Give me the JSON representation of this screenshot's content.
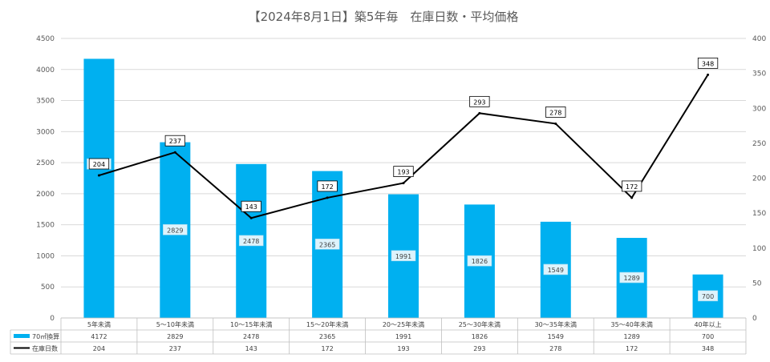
{
  "chart_data": {
    "type": "bar+line",
    "title": "【2024年8月1日】築5年毎　在庫日数・平均価格",
    "categories": [
      "5年未満",
      "5～10年未満",
      "10～15年未満",
      "15～20年未満",
      "20～25年未満",
      "25～30年未満",
      "30～35年未満",
      "35～40年未満",
      "40年以上"
    ],
    "series": [
      {
        "name": "70㎡換算",
        "type": "bar",
        "axis": "left",
        "color": "#00B0F0",
        "values": [
          4172,
          2829,
          2478,
          2365,
          1991,
          1826,
          1549,
          1289,
          700
        ],
        "labels": [
          "4172",
          "2829",
          "2478",
          "2365",
          "1991",
          "1826",
          "1549",
          "1289",
          "700"
        ]
      },
      {
        "name": "在庫日数",
        "type": "line",
        "axis": "right",
        "color": "#000000",
        "values": [
          204,
          237,
          143,
          172,
          193,
          293,
          278,
          172,
          348
        ],
        "labels": [
          "204",
          "237",
          "143",
          "172",
          "193",
          "293",
          "278",
          "172",
          "348"
        ]
      }
    ],
    "y_left": {
      "min": 0,
      "max": 4500,
      "ticks": [
        "0",
        "500",
        "1000",
        "1500",
        "2000",
        "2500",
        "3000",
        "3500",
        "4000",
        "4500"
      ]
    },
    "y_right": {
      "min": 0,
      "max": 400,
      "ticks": [
        "0",
        "50",
        "100",
        "150",
        "200",
        "250",
        "300",
        "350",
        "400"
      ]
    },
    "grid": true,
    "legend": "data-table"
  }
}
